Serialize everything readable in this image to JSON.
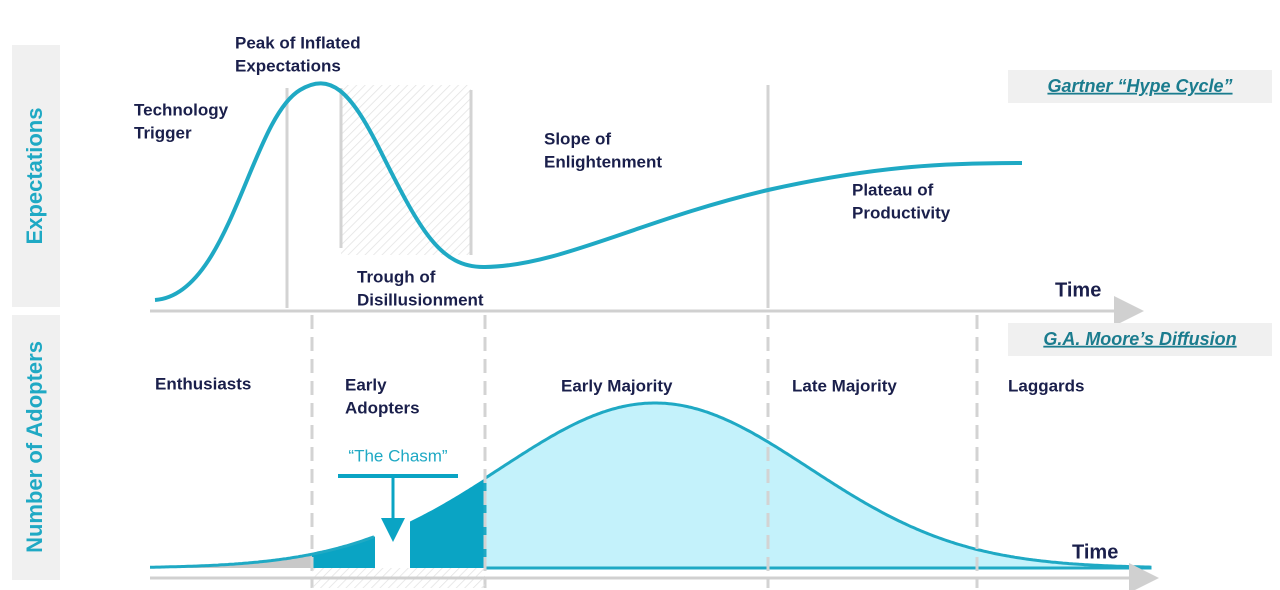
{
  "axes": {
    "top_label": "Expectations",
    "bottom_label": "Number of Adopters"
  },
  "hype_cycle": {
    "title": "Gartner “Hype Cycle”",
    "phases": [
      [
        "Technology",
        "Trigger"
      ],
      [
        "Peak of Inflated",
        "Expectations"
      ],
      [
        "Trough of",
        "Disillusionment"
      ],
      [
        "Slope of",
        "Enlightenment"
      ],
      [
        "Plateau of",
        "Productivity"
      ]
    ],
    "axis_label": "Time"
  },
  "diffusion": {
    "title": "G.A. Moore’s Diffusion",
    "segments": [
      [
        "Enthusiasts"
      ],
      [
        "Early",
        "Adopters"
      ],
      [
        "Early Majority"
      ],
      [
        "Late Majority"
      ],
      [
        "Laggards"
      ]
    ],
    "chasm": "“The Chasm”",
    "axis_label": "Time"
  }
}
